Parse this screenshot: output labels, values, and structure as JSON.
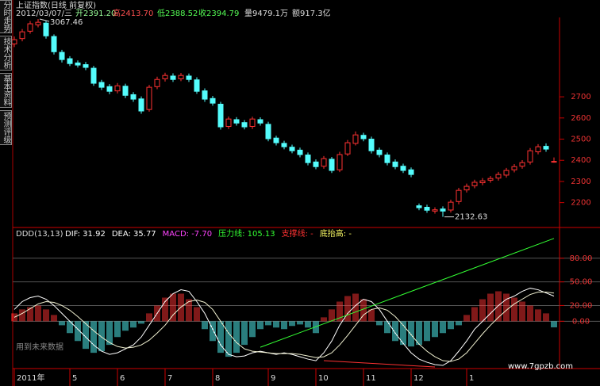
{
  "header": {
    "title": "上证指数(日线 前复权)",
    "date": "2012/03/07/三",
    "open": "开2391.20",
    "high": "高2413.70",
    "low": "低2388.52",
    "close": "收2394.79",
    "volume": "量9479.1万",
    "amount": "额917.3亿"
  },
  "tabs": [
    "分时走势",
    "技术分析",
    "基本资料",
    "预测评级"
  ],
  "footer_note": "用到未来数据",
  "watermark": "www.7gpzb.com",
  "chart_data": [
    {
      "type": "candlestick",
      "up_color": "#ff3232",
      "down_color": "#54fcfc",
      "ylim": [
        2090,
        3075
      ],
      "yticks": [
        2200,
        2300,
        2400,
        2500,
        2600,
        2700
      ],
      "open": [
        2950,
        2975,
        3010,
        3040,
        3048,
        2985,
        2910,
        2880,
        2860,
        2852,
        2835,
        2768,
        2748,
        2728,
        2750,
        2710,
        2690,
        2640,
        2748,
        2785,
        2798,
        2785,
        2798,
        2780,
        2728,
        2692,
        2665,
        2560,
        2592,
        2578,
        2560,
        2592,
        2570,
        2505,
        2480,
        2462,
        2448,
        2425,
        2392,
        2372,
        2405,
        2355,
        2430,
        2480,
        2518,
        2500,
        2448,
        2425,
        2392,
        2372,
        2355,
        2185,
        2178,
        2160,
        2170,
        2165,
        2205,
        2260,
        2280,
        2294,
        2306,
        2316,
        2330,
        2355,
        2372,
        2392,
        2440,
        2466,
        2391.2
      ],
      "high": [
        2985,
        3020,
        3058,
        3067.46,
        3060,
        2995,
        2922,
        2892,
        2872,
        2865,
        2846,
        2780,
        2760,
        2765,
        2762,
        2722,
        2702,
        2756,
        2795,
        2814,
        2811,
        2813,
        2810,
        2792,
        2740,
        2704,
        2676,
        2607,
        2604,
        2590,
        2606,
        2603,
        2582,
        2516,
        2492,
        2474,
        2460,
        2437,
        2404,
        2420,
        2416,
        2440,
        2496,
        2536,
        2530,
        2512,
        2460,
        2437,
        2404,
        2384,
        2366,
        2196,
        2190,
        2178,
        2182,
        2214,
        2270,
        2290,
        2308,
        2316,
        2326,
        2345,
        2364,
        2382,
        2401,
        2458,
        2476,
        2480,
        2413.7
      ],
      "low": [
        2935,
        2962,
        2998,
        3028,
        2975,
        2900,
        2862,
        2845,
        2838,
        2826,
        2752,
        2732,
        2712,
        2716,
        2694,
        2676,
        2620,
        2630,
        2736,
        2772,
        2770,
        2774,
        2770,
        2714,
        2676,
        2658,
        2545,
        2548,
        2564,
        2546,
        2548,
        2564,
        2490,
        2470,
        2452,
        2433,
        2414,
        2376,
        2358,
        2360,
        2340,
        2344,
        2420,
        2470,
        2490,
        2432,
        2414,
        2376,
        2358,
        2340,
        2320,
        2164,
        2152,
        2148,
        2132.63,
        2153,
        2192,
        2248,
        2268,
        2282,
        2294,
        2304,
        2318,
        2343,
        2360,
        2380,
        2428,
        2440,
        2388.52
      ],
      "close": [
        2970,
        3007,
        3045,
        3052,
        2988,
        2913,
        2876,
        2857,
        2850,
        2839,
        2764,
        2745,
        2726,
        2752,
        2707,
        2689,
        2633,
        2745,
        2782,
        2801,
        2782,
        2801,
        2782,
        2726,
        2689,
        2670,
        2558,
        2595,
        2576,
        2558,
        2595,
        2576,
        2502,
        2483,
        2464,
        2445,
        2427,
        2389,
        2370,
        2408,
        2352,
        2427,
        2483,
        2520,
        2502,
        2445,
        2427,
        2389,
        2370,
        2352,
        2333,
        2176,
        2164,
        2166,
        2160,
        2202,
        2258,
        2277,
        2296,
        2303,
        2314,
        2333,
        2352,
        2370,
        2389,
        2445,
        2464,
        2453,
        2394.79
      ]
    },
    {
      "type": "macd",
      "title": "DDD(13,13)",
      "legend": [
        {
          "text": "DIF: 31.92",
          "color": "#ffffff"
        },
        {
          "text": "DEA: 35.77",
          "color": "#ffffff"
        },
        {
          "text": "MACD: -7.70",
          "color": "#ff44ff"
        },
        {
          "text": "压力线: 105.13",
          "color": "#33ff33"
        },
        {
          "text": "支撑线: -",
          "color": "#ff3232"
        },
        {
          "text": "底抬高: -",
          "color": "#ffff66"
        }
      ],
      "categories": [
        "2011年",
        null,
        null,
        null,
        null,
        null,
        null,
        "5",
        null,
        null,
        null,
        null,
        null,
        "6",
        null,
        null,
        null,
        null,
        null,
        "7",
        null,
        null,
        null,
        null,
        null,
        "8",
        null,
        null,
        null,
        null,
        null,
        null,
        "9",
        null,
        null,
        null,
        null,
        null,
        "10",
        null,
        null,
        null,
        null,
        null,
        "11",
        null,
        null,
        null,
        null,
        null,
        "12",
        null,
        null,
        null,
        null,
        null,
        null,
        "1",
        null,
        null,
        null,
        null,
        null,
        null,
        null,
        null,
        null,
        null,
        null
      ],
      "ylim": [
        -60,
        116
      ],
      "yticks": [
        {
          "value": 0,
          "label": "0.00"
        },
        {
          "value": 20,
          "label": "20.00"
        },
        {
          "value": 50,
          "label": "50.00"
        },
        {
          "value": 80,
          "label": "80.00"
        }
      ],
      "grid": true,
      "histogram": {
        "up_color": "#ff3232",
        "down_color": "#54fcfc",
        "values": [
          10,
          15,
          18,
          20,
          15,
          8,
          -5,
          -15,
          -25,
          -35,
          -40,
          -38,
          -30,
          -20,
          -12,
          -8,
          -3,
          10,
          20,
          30,
          35,
          35,
          28,
          18,
          -10,
          -25,
          -40,
          -45,
          -40,
          -30,
          -20,
          -10,
          -5,
          -8,
          -10,
          -6,
          -4,
          -8,
          -15,
          5,
          15,
          25,
          32,
          35,
          28,
          15,
          -5,
          -15,
          -25,
          -30,
          -32,
          -30,
          -25,
          -20,
          -15,
          -10,
          -5,
          8,
          18,
          28,
          35,
          38,
          35,
          30,
          25,
          20,
          15,
          10,
          -7.7
        ]
      },
      "series": [
        {
          "color": "#ffffff",
          "values": [
            15,
            25,
            30,
            32,
            28,
            20,
            10,
            0,
            -10,
            -20,
            -30,
            -38,
            -42,
            -40,
            -35,
            -30,
            -20,
            -5,
            10,
            25,
            35,
            40,
            38,
            25,
            10,
            -10,
            -30,
            -42,
            -45,
            -44,
            -40,
            -38,
            -40,
            -42,
            -40,
            -42,
            -45,
            -48,
            -50,
            -40,
            -25,
            -5,
            10,
            20,
            28,
            25,
            15,
            0,
            -15,
            -28,
            -40,
            -48,
            -52,
            -55,
            -56,
            -50,
            -38,
            -25,
            -10,
            0,
            10,
            20,
            28,
            32,
            38,
            42,
            40,
            36,
            31.92
          ]
        },
        {
          "color": "#f0f0d0",
          "values": [
            5,
            10,
            16,
            22,
            25,
            24,
            20,
            14,
            6,
            -3,
            -12,
            -20,
            -27,
            -32,
            -34,
            -33,
            -30,
            -24,
            -15,
            -5,
            8,
            18,
            25,
            27,
            24,
            15,
            0,
            -15,
            -27,
            -35,
            -38,
            -39,
            -40,
            -41,
            -41,
            -41,
            -42,
            -44,
            -46,
            -45,
            -40,
            -30,
            -18,
            -5,
            8,
            15,
            17,
            14,
            6,
            -5,
            -17,
            -29,
            -38,
            -45,
            -50,
            -51,
            -48,
            -40,
            -28,
            -16,
            -5,
            5,
            14,
            22,
            28,
            34,
            37,
            37,
            35.77
          ]
        }
      ],
      "lines": [
        {
          "color": "#33ff33",
          "x": [
            31,
            68
          ],
          "values": [
            -33,
            105.13
          ]
        },
        {
          "color": "#ff3232",
          "x": [
            39,
            53
          ],
          "values": [
            -50,
            -58
          ]
        }
      ]
    }
  ]
}
